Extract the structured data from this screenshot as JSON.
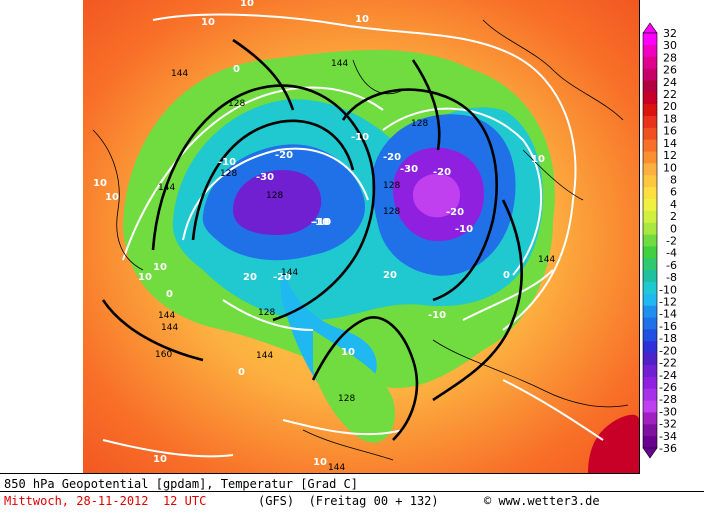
{
  "map": {
    "contour_labels_white": [
      "10",
      "10",
      "10",
      "10",
      "10",
      "10",
      "10",
      "0",
      "0",
      "-10",
      "-10",
      "-20",
      "-20",
      "-30",
      "-30",
      "-10",
      "-10",
      "-20",
      "-20",
      "-10",
      "10",
      "0",
      "20",
      "20",
      "-10",
      "-20",
      "10",
      "10",
      "10",
      "0"
    ],
    "contour_labels_black": [
      "144",
      "144",
      "144",
      "144",
      "128",
      "128",
      "128",
      "128",
      "128",
      "128",
      "128",
      "144",
      "144",
      "144",
      "160",
      "128",
      "144",
      "144"
    ]
  },
  "legend": {
    "ticks": [
      "32",
      "30",
      "28",
      "26",
      "24",
      "22",
      "20",
      "18",
      "16",
      "14",
      "12",
      "10",
      "8",
      "6",
      "4",
      "2",
      "0",
      "-2",
      "-4",
      "-6",
      "-8",
      "-10",
      "-12",
      "-14",
      "-16",
      "-18",
      "-20",
      "-22",
      "-24",
      "-26",
      "-28",
      "-30",
      "-32",
      "-34",
      "-36"
    ],
    "colors": [
      "#ff00ff",
      "#f000c0",
      "#e00090",
      "#c8006a",
      "#b40040",
      "#c80028",
      "#dc1410",
      "#e8321c",
      "#f05020",
      "#f87028",
      "#fa9030",
      "#fcb040",
      "#fdc840",
      "#fde040",
      "#f0f040",
      "#d0f040",
      "#a8e840",
      "#70dc40",
      "#40d040",
      "#30c870",
      "#20c0a0",
      "#20c8d0",
      "#20b8f0",
      "#2090f0",
      "#2070e8",
      "#2050e0",
      "#3030d8",
      "#5020c8",
      "#7020d0",
      "#9020e0",
      "#a830e8",
      "#c040f0",
      "#a020c0",
      "#8010a0",
      "#6a0090"
    ]
  },
  "footer": {
    "line1": "850 hPa Geopotential [gpdam], Temperatur [Grad C]",
    "line2": "Mittwoch, 28-11-2012  12 UTC",
    "model": "(GFS)  (Freitag 00 + 132)",
    "credit": "© www.wetter3.de"
  }
}
